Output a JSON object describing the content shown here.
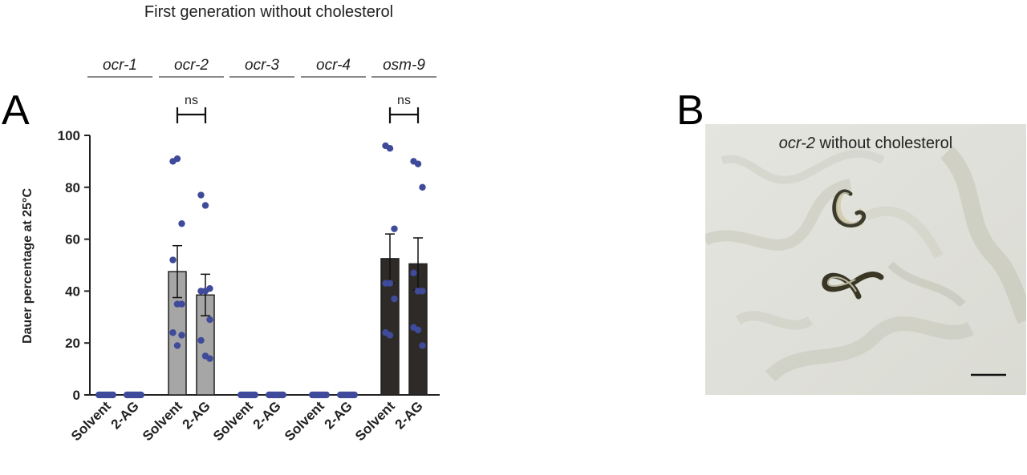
{
  "figure_title": "First generation without cholesterol",
  "panels": {
    "a": "A",
    "b": "B"
  },
  "chart_data": {
    "type": "bar",
    "title": "First generation without cholesterol",
    "ylabel": "Dauer percentage at 25°C",
    "xlabel": "",
    "ylim": [
      0,
      100
    ],
    "yticks": [
      0,
      20,
      40,
      60,
      80,
      100
    ],
    "grid": false,
    "groups": [
      {
        "name": "ocr-1",
        "color": "#ffffff"
      },
      {
        "name": "ocr-2",
        "color": "#a6a6a6"
      },
      {
        "name": "ocr-3",
        "color": "#ffffff"
      },
      {
        "name": "ocr-4",
        "color": "#ffffff"
      },
      {
        "name": "osm-9",
        "color": "#2e2a27"
      }
    ],
    "bars": [
      {
        "group": 0,
        "category": "Solvent",
        "mean": 0,
        "sem": 0,
        "points": [
          0,
          0,
          0,
          0,
          0,
          0,
          0,
          0,
          0
        ]
      },
      {
        "group": 0,
        "category": "2-AG",
        "mean": 0,
        "sem": 0,
        "points": [
          0,
          0,
          0,
          0,
          0,
          0,
          0,
          0,
          0
        ]
      },
      {
        "group": 1,
        "category": "Solvent",
        "mean": 47.5,
        "sem": 10,
        "points": [
          90,
          91,
          66,
          52,
          35,
          35,
          24,
          19,
          23
        ]
      },
      {
        "group": 1,
        "category": "2-AG",
        "mean": 38.5,
        "sem": 8,
        "points": [
          77,
          73,
          41,
          40,
          40,
          29,
          21,
          15,
          14
        ]
      },
      {
        "group": 2,
        "category": "Solvent",
        "mean": 0,
        "sem": 0,
        "points": [
          0,
          0,
          0,
          0,
          0,
          0,
          0,
          0,
          0
        ]
      },
      {
        "group": 2,
        "category": "2-AG",
        "mean": 0,
        "sem": 0,
        "points": [
          0,
          0,
          0,
          0,
          0,
          0,
          0,
          0,
          0
        ]
      },
      {
        "group": 3,
        "category": "Solvent",
        "mean": 0,
        "sem": 0,
        "points": [
          0,
          0,
          0,
          0,
          0,
          0,
          0,
          0,
          0
        ]
      },
      {
        "group": 3,
        "category": "2-AG",
        "mean": 0,
        "sem": 0,
        "points": [
          0,
          0,
          0,
          0,
          0,
          0,
          0,
          0,
          0
        ]
      },
      {
        "group": 4,
        "category": "Solvent",
        "mean": 52.5,
        "sem": 9.5,
        "points": [
          96,
          95,
          64,
          43,
          43,
          37,
          24,
          23
        ]
      },
      {
        "group": 4,
        "category": "2-AG",
        "mean": 50.5,
        "sem": 10,
        "points": [
          90,
          89,
          80,
          47,
          40,
          40,
          26,
          25,
          19
        ]
      }
    ],
    "significance": [
      {
        "group": 1,
        "label": "ns"
      },
      {
        "group": 4,
        "label": "ns"
      }
    ],
    "point_color": "#3f4a9a"
  },
  "photo": {
    "caption_italic": "ocr-2",
    "caption_rest": " without cholesterol"
  }
}
